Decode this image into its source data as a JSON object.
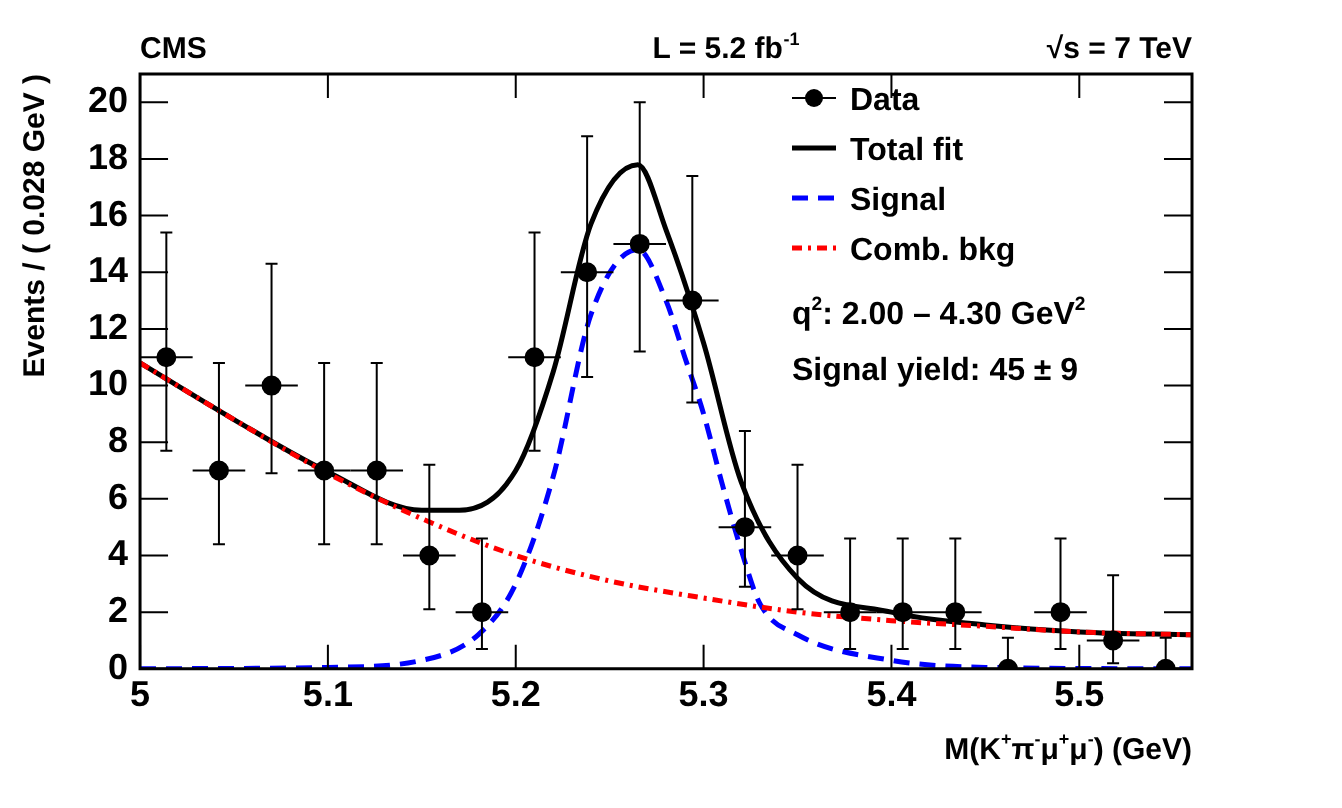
{
  "chart_data": {
    "type": "scatter",
    "xlabel": "M(K$^{+}$π$^{-}$μ$^{+}$μ$^{-}$) (GeV)",
    "ylabel": "Events / ( 0.028 GeV )",
    "annotations": [
      "CMS",
      "L = 5.2 fb$^{-1}$",
      "√s = 7 TeV",
      "q$^{2}$: 2.00 – 4.30 GeV$^{2}$",
      "Signal yield: 45 ± 9"
    ],
    "xlim": [
      5,
      5.56
    ],
    "xticks": [
      {
        "value": 5,
        "label": "5"
      },
      5.1,
      5.2,
      5.3,
      5.4,
      5.5
    ],
    "ylim": [
      0,
      21
    ],
    "yticks": [
      0,
      2,
      4,
      6,
      8,
      10,
      12,
      14,
      16,
      18,
      20
    ],
    "legend": "top right",
    "grid": false,
    "series": [
      {
        "name": "Data",
        "color": "#000000",
        "marker": "circle",
        "x": [
          5.014,
          5.042,
          5.07,
          5.098,
          5.126,
          5.154,
          5.182,
          5.21,
          5.238,
          5.266,
          5.294,
          5.322,
          5.35,
          5.378,
          5.406,
          5.434,
          5.462,
          5.49,
          5.518,
          5.546
        ],
        "values": [
          11,
          7,
          10,
          7,
          7,
          4,
          2,
          11,
          14,
          15,
          13,
          5,
          4,
          2,
          2,
          2,
          0,
          2,
          1,
          0
        ],
        "errors": [
          [
            7.7,
            15.4
          ],
          [
            4.4,
            10.8
          ],
          [
            6.9,
            14.3
          ],
          [
            4.4,
            10.8
          ],
          [
            4.4,
            10.8
          ],
          [
            2.1,
            7.2
          ],
          [
            0.7,
            4.6
          ],
          [
            7.7,
            15.4
          ],
          [
            10.3,
            18.8
          ],
          [
            11.2,
            20
          ],
          [
            9.4,
            17.4
          ],
          [
            2.9,
            8.4
          ],
          [
            2.1,
            7.2
          ],
          [
            0.7,
            4.6
          ],
          [
            0.7,
            4.6
          ],
          [
            0.7,
            4.6
          ],
          [
            0,
            1.1
          ],
          [
            0.7,
            4.6
          ],
          [
            0.2,
            3.3
          ],
          [
            0,
            1.1
          ]
        ],
        "xerrors": [
          0.014,
          0.014,
          0.014,
          0.014,
          0.014,
          0.014,
          0.014,
          0.014,
          0.014,
          0.014,
          0.014,
          0.014,
          0.014,
          0.014,
          0.014,
          0.014,
          0.014,
          0.014,
          0.014,
          0.014
        ]
      },
      {
        "name": "Total fit",
        "type": "line",
        "color": "#000000",
        "line_style": "solid",
        "x": [
          5.0,
          5.05,
          5.1,
          5.15,
          5.17,
          5.2,
          5.22,
          5.24,
          5.265,
          5.28,
          5.3,
          5.32,
          5.35,
          5.4,
          5.45,
          5.5,
          5.56
        ],
        "values": [
          10.8,
          8.8,
          6.95,
          5.6,
          5.6,
          7.0,
          10.5,
          15.7,
          17.8,
          15.5,
          11.5,
          6.6,
          3.2,
          2.0,
          1.55,
          1.3,
          1.2
        ]
      },
      {
        "name": "Signal",
        "type": "line",
        "color": "#0000ff",
        "line_style": "dashed",
        "x": [
          5.0,
          5.1,
          5.15,
          5.18,
          5.2,
          5.22,
          5.24,
          5.265,
          5.28,
          5.29,
          5.3,
          5.31,
          5.32,
          5.33,
          5.35,
          5.4,
          5.45,
          5.56
        ],
        "values": [
          0,
          0.05,
          0.3,
          1.2,
          3.0,
          6.8,
          12.5,
          14.8,
          13.0,
          11,
          9.0,
          6.5,
          4.2,
          2.3,
          1.2,
          0.3,
          0.05,
          0
        ]
      },
      {
        "name": "Comb. bkg",
        "type": "line",
        "color": "#ff0000",
        "line_style": "dotted",
        "x": [
          5.0,
          5.05,
          5.1,
          5.15,
          5.2,
          5.25,
          5.3,
          5.35,
          5.4,
          5.45,
          5.5,
          5.56
        ],
        "values": [
          10.8,
          8.8,
          6.9,
          5.3,
          4.0,
          3.1,
          2.5,
          2.0,
          1.7,
          1.5,
          1.3,
          1.2
        ]
      }
    ]
  }
}
